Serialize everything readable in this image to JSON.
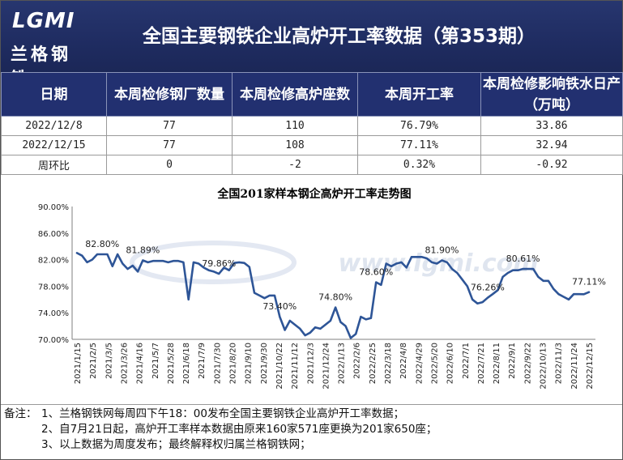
{
  "banner": {
    "logo_text": "LGMI",
    "logo_cn": "兰格钢铁",
    "title": "全国主要钢铁企业高炉开工率数据（第353期）"
  },
  "table": {
    "headers": [
      "日期",
      "本周检修钢厂数量",
      "本周检修高炉座数",
      "本周开工率",
      "本周检修影响铁水日产（万吨）"
    ],
    "rows": [
      [
        "2022/12/8",
        "77",
        "110",
        "76.79%",
        "33.86"
      ],
      [
        "2022/12/15",
        "77",
        "108",
        "77.11%",
        "32.94"
      ],
      [
        "周环比",
        "0",
        "-2",
        "0.32%",
        "-0.92"
      ]
    ],
    "change_colors": {
      "negative": "#1a9a3a",
      "positive": "#e02020"
    }
  },
  "chart_data": {
    "type": "line",
    "title": "全国201家样本钢企高炉开工率走势图",
    "watermark": "www.lgmi.com",
    "ylim": [
      70,
      90
    ],
    "yticks": [
      "70.00%",
      "74.00%",
      "78.00%",
      "82.00%",
      "86.00%",
      "90.00%"
    ],
    "xtick_labels": [
      "2021/1/15",
      "2021/2/5",
      "2021/3/5",
      "2021/3/26",
      "2021/4/16",
      "2021/5/7",
      "2021/5/28",
      "2021/6/18",
      "2021/7/9",
      "2021/7/30",
      "2021/8/20",
      "2021/9/10",
      "2021/9/30",
      "2021/10/22",
      "2021/11/12",
      "2021/12/3",
      "2021/12/24",
      "2022/1/13",
      "2022/2/6",
      "2022/2/25",
      "2022/3/18",
      "2022/4/8",
      "2022/4/29",
      "2022/5/20",
      "2022/6/10",
      "2022/7/1",
      "2022/7/21",
      "2022/8/11",
      "2022/9/1",
      "2022/9/22",
      "2022/10/13",
      "2022/11/3",
      "2022/11/24",
      "2022/12/15"
    ],
    "series": [
      {
        "color": "#2e5597",
        "values": [
          83.0,
          82.6,
          81.6,
          82.0,
          82.8,
          82.8,
          82.8,
          81.0,
          82.8,
          81.4,
          80.6,
          81.1,
          80.2,
          81.89,
          81.6,
          81.8,
          81.8,
          81.8,
          81.6,
          81.8,
          81.8,
          81.6,
          76.0,
          81.6,
          81.4,
          80.8,
          80.4,
          80.2,
          79.86,
          80.8,
          80.4,
          81.5,
          81.6,
          81.5,
          80.9,
          77.0,
          76.6,
          76.2,
          76.6,
          76.6,
          73.4,
          71.4,
          72.8,
          72.2,
          71.6,
          70.6,
          71.0,
          71.8,
          71.6,
          72.2,
          72.8,
          74.8,
          72.6,
          72.0,
          70.2,
          70.8,
          73.4,
          73.0,
          73.2,
          78.6,
          78.2,
          81.4,
          81.0,
          81.4,
          81.6,
          80.8,
          82.4,
          82.4,
          82.4,
          82.2,
          81.6,
          81.4,
          81.9,
          81.6,
          80.6,
          80.0,
          79.0,
          78.0,
          76.0,
          75.4,
          75.6,
          76.26,
          76.8,
          77.4,
          79.4,
          80.0,
          80.4,
          80.4,
          80.61,
          80.6,
          80.6,
          79.4,
          78.8,
          78.8,
          77.6,
          76.8,
          76.4,
          76.0,
          76.8,
          76.8,
          76.79,
          77.11
        ]
      }
    ],
    "data_labels": [
      {
        "index": 5,
        "text": "82.80%"
      },
      {
        "index": 13,
        "text": "81.89%"
      },
      {
        "index": 28,
        "text": "79.86%"
      },
      {
        "index": 40,
        "text": "73.40%"
      },
      {
        "index": 51,
        "text": "74.80%"
      },
      {
        "index": 59,
        "text": "78.60%"
      },
      {
        "index": 72,
        "text": "81.90%"
      },
      {
        "index": 81,
        "text": "76.26%"
      },
      {
        "index": 88,
        "text": "80.61%"
      },
      {
        "index": 101,
        "text": "77.11%"
      }
    ]
  },
  "notes": {
    "prefix": "备注：",
    "lines": [
      "1、兰格钢铁网每周四下午18：00发布全国主要钢铁企业高炉开工率数据；",
      "2、自7月21日起，高炉开工率样本数据由原来160家571座更换为201家650座；",
      "3、以上数据为周度发布；最终解释权归属兰格钢铁网；"
    ]
  }
}
